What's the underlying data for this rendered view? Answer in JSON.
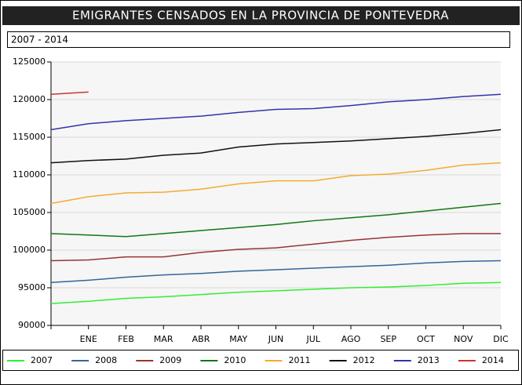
{
  "chart_data": {
    "type": "line",
    "title": "EMIGRANTES CENSADOS EN LA PROVINCIA DE PONTEVEDRA",
    "subtitle": "2007 - 2014",
    "categories": [
      null,
      "ENE",
      "FEB",
      "MAR",
      "ABR",
      "MAY",
      "JUN",
      "JUL",
      "AGO",
      "SEP",
      "OCT",
      "NOV",
      "DIC"
    ],
    "ylim": [
      90000,
      125000
    ],
    "yticks": [
      90000,
      95000,
      100000,
      105000,
      110000,
      115000,
      120000,
      125000
    ],
    "grid": true,
    "legend": "bottom",
    "series": [
      {
        "name": "2007",
        "color": "#33ee33",
        "values": [
          92900,
          93200,
          93600,
          93800,
          94100,
          94400,
          94600,
          94800,
          95000,
          95100,
          95300,
          95600,
          95700
        ]
      },
      {
        "name": "2008",
        "color": "#336699",
        "values": [
          95700,
          96000,
          96400,
          96700,
          96900,
          97200,
          97400,
          97600,
          97800,
          98000,
          98300,
          98500,
          98600
        ]
      },
      {
        "name": "2009",
        "color": "#993333",
        "values": [
          98600,
          98700,
          99100,
          99100,
          99700,
          100100,
          100300,
          100800,
          101300,
          101700,
          102000,
          102200,
          102200
        ]
      },
      {
        "name": "2010",
        "color": "#117711",
        "values": [
          102200,
          102000,
          101800,
          102200,
          102600,
          103000,
          103400,
          103900,
          104300,
          104700,
          105200,
          105700,
          106200
        ]
      },
      {
        "name": "2011",
        "color": "#f5aa33",
        "values": [
          106200,
          107100,
          107600,
          107700,
          108100,
          108800,
          109200,
          109200,
          109900,
          110100,
          110600,
          111300,
          111600
        ]
      },
      {
        "name": "2012",
        "color": "#111111",
        "values": [
          111600,
          111900,
          112100,
          112600,
          112900,
          113700,
          114100,
          114300,
          114500,
          114800,
          115100,
          115500,
          116000
        ]
      },
      {
        "name": "2013",
        "color": "#3333aa",
        "values": [
          116000,
          116800,
          117200,
          117500,
          117800,
          118300,
          118700,
          118800,
          119200,
          119700,
          120000,
          120400,
          120700
        ]
      },
      {
        "name": "2014",
        "color": "#cc3333",
        "values": [
          120700,
          121000,
          null,
          null,
          null,
          null,
          null,
          null,
          null,
          null,
          null,
          null,
          null
        ]
      }
    ]
  }
}
